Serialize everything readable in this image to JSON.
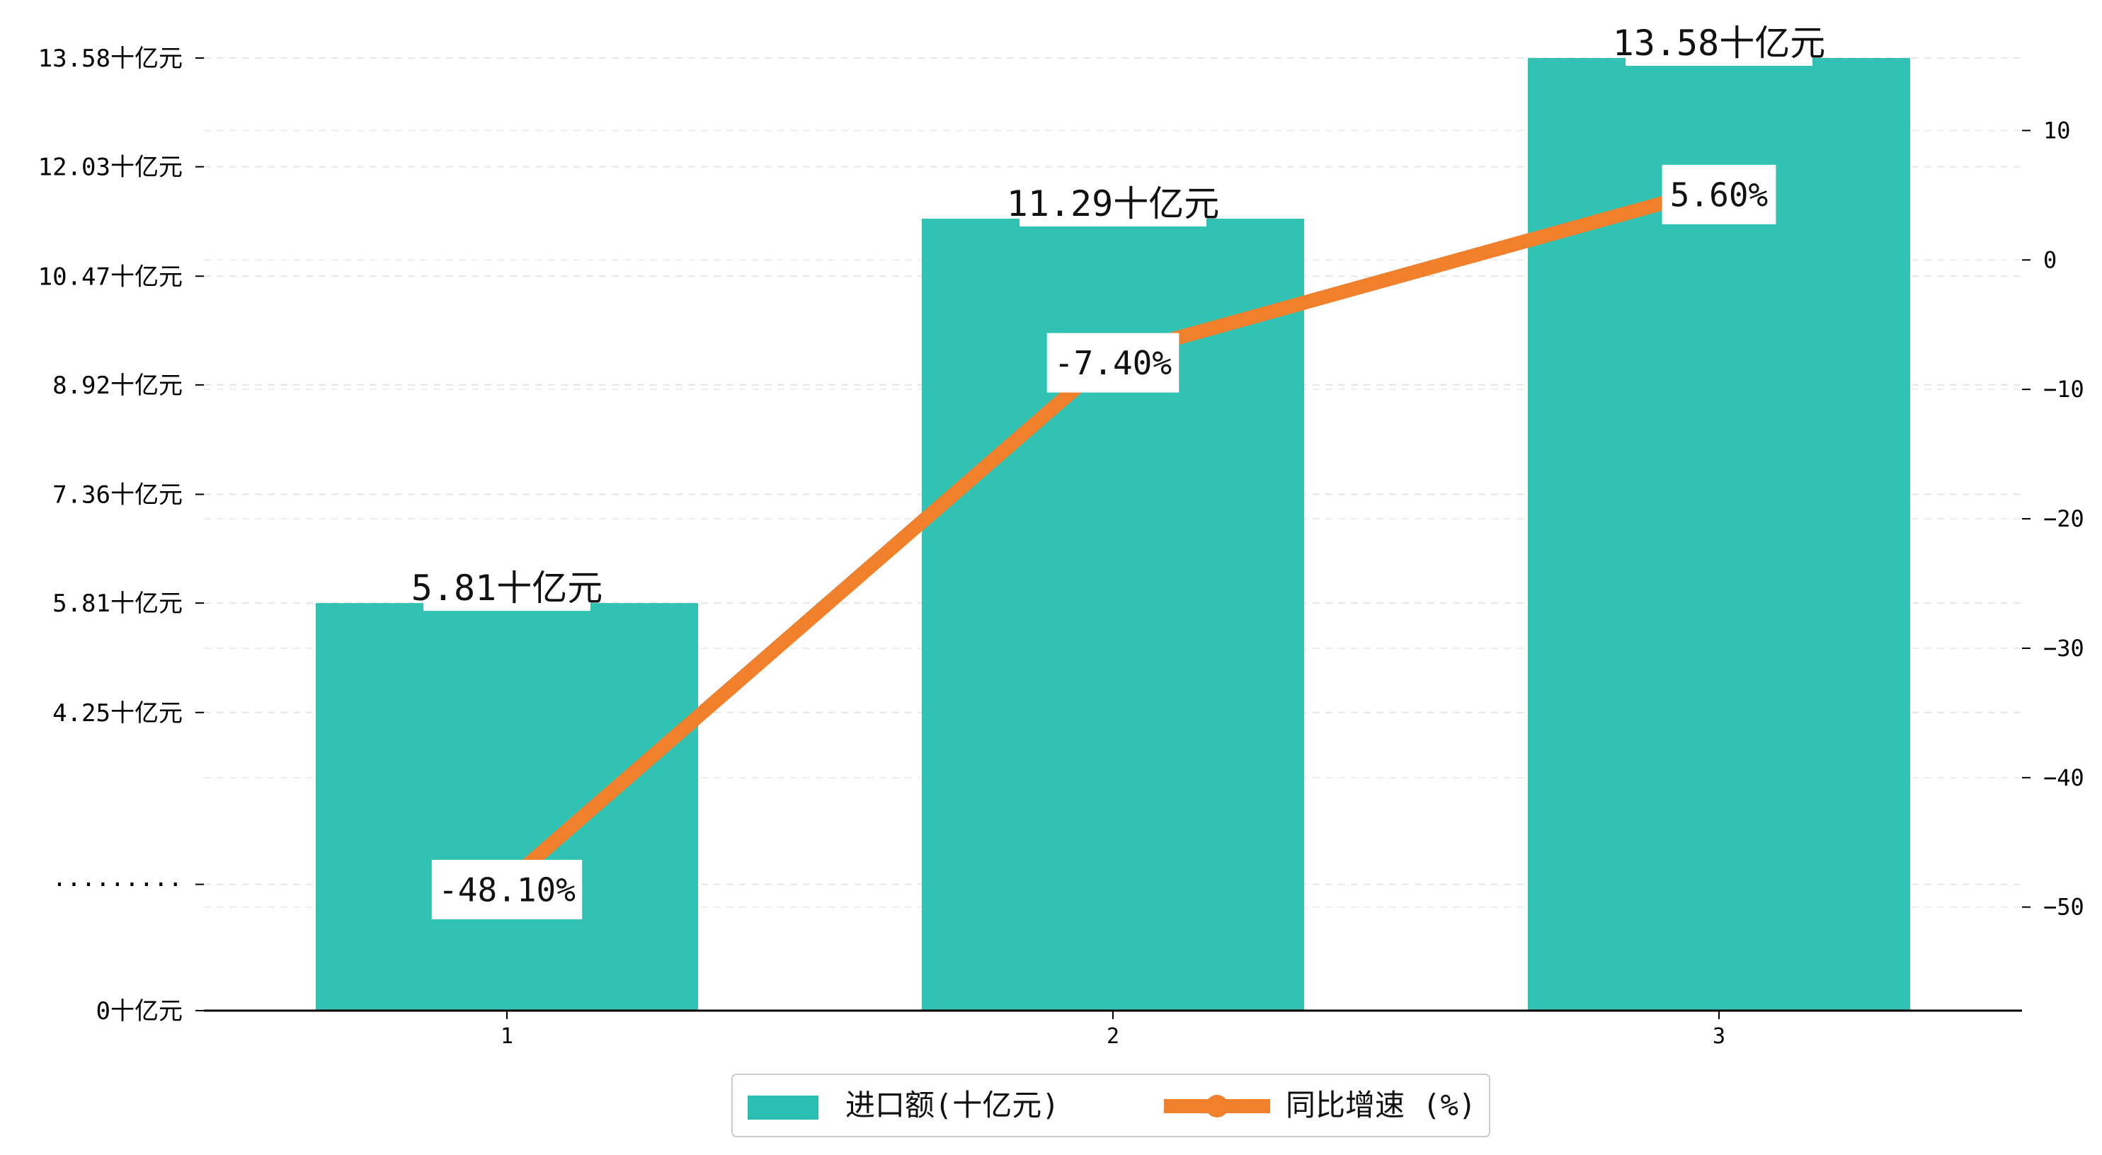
{
  "chart_data": {
    "type": "bar",
    "categories": [
      "1",
      "2",
      "3"
    ],
    "series": [
      {
        "name": "进口额(十亿元)",
        "kind": "bar",
        "axis": "left",
        "color": "#2abfb0",
        "values": [
          5.81,
          11.29,
          13.58
        ],
        "labels": [
          "5.81十亿元",
          "11.29十亿元",
          "13.58十亿元"
        ]
      },
      {
        "name": "同比增速 (%)",
        "kind": "line",
        "axis": "right",
        "color": "#f0802c",
        "values": [
          -48.1,
          -7.4,
          5.6
        ],
        "labels": [
          "-48.10%",
          "-7.40%",
          "5.60%"
        ]
      }
    ],
    "y_left": {
      "ticks": [
        0,
        1.8,
        4.25,
        5.81,
        7.36,
        8.92,
        10.47,
        12.03,
        13.58
      ],
      "tick_labels": [
        "0十亿元",
        "·········",
        "4.25十亿元",
        "5.81十亿元",
        "7.36十亿元",
        "8.92十亿元",
        "10.47十亿元",
        "12.03十亿元",
        "13.58十亿元"
      ],
      "range": [
        0,
        13.58
      ]
    },
    "y_right": {
      "ticks": [
        -50,
        -40,
        -30,
        -20,
        -10,
        0,
        10
      ],
      "tick_labels": [
        "−50",
        "−40",
        "−30",
        "−20",
        "−10",
        "0",
        "10"
      ],
      "range": [
        -58,
        15.6
      ]
    },
    "grid": "horizontal-dashed",
    "legend_position": "bottom-center"
  }
}
